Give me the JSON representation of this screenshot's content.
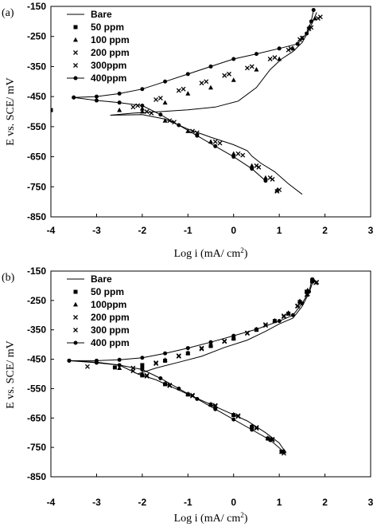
{
  "chart_data": [
    {
      "type": "line",
      "panel_label": "(a)",
      "xlabel": "Log i (mA/ cm",
      "xlabel_sup": "2",
      "xlabel_close": ")",
      "ylabel": "E vs. SCE/ mV",
      "xlim": [
        -4,
        3
      ],
      "ylim": [
        -850,
        -150
      ],
      "x_ticks": [
        "-4",
        "-3",
        "-2",
        "-1",
        "0",
        "1",
        "2",
        "3"
      ],
      "y_ticks": [
        "-150",
        "-250",
        "-350",
        "-450",
        "-550",
        "-650",
        "-750",
        "-850"
      ],
      "grid": false,
      "legend_position": "top-left",
      "series": [
        {
          "name": "Bare",
          "marker": "none",
          "points": [
            [
              -2.7,
              -512
            ],
            [
              -2.2,
              -505
            ],
            [
              -1.6,
              -500
            ],
            [
              -1.0,
              -494
            ],
            [
              -0.4,
              -485
            ],
            [
              0.1,
              -465
            ],
            [
              0.5,
              -420
            ],
            [
              0.8,
              -360
            ],
            [
              1.05,
              -325
            ],
            [
              1.3,
              -300
            ],
            [
              1.5,
              -270
            ],
            [
              1.65,
              -230
            ],
            [
              1.75,
              -195
            ],
            [
              1.82,
              -170
            ]
          ],
          "cathodic": [
            [
              -2.7,
              -512
            ],
            [
              -2.0,
              -510
            ],
            [
              -1.5,
              -525
            ],
            [
              -1.0,
              -558
            ],
            [
              -0.5,
              -585
            ],
            [
              0.0,
              -610
            ],
            [
              0.3,
              -630
            ],
            [
              0.4,
              -648
            ],
            [
              0.6,
              -672
            ],
            [
              0.9,
              -700
            ],
            [
              1.2,
              -740
            ],
            [
              1.5,
              -775
            ]
          ]
        },
        {
          "name": "50 ppm",
          "marker": "square",
          "points": [
            [
              -4.0,
              -495
            ]
          ]
        },
        {
          "name": "100 ppm",
          "marker": "triangle",
          "points": [
            [
              -2.5,
              -495
            ],
            [
              -2.0,
              -490
            ],
            [
              -1.5,
              -470
            ],
            [
              -1.0,
              -440
            ],
            [
              -0.5,
              -420
            ],
            [
              0.0,
              -395
            ],
            [
              0.5,
              -360
            ],
            [
              1.0,
              -325
            ],
            [
              1.3,
              -290
            ],
            [
              1.5,
              -255
            ],
            [
              1.65,
              -220
            ],
            [
              1.78,
              -190
            ]
          ],
          "cathodic": [
            [
              -2.0,
              -500
            ],
            [
              -1.5,
              -530
            ],
            [
              -1.0,
              -565
            ],
            [
              -0.5,
              -600
            ],
            [
              0.0,
              -640
            ],
            [
              0.4,
              -680
            ],
            [
              0.7,
              -720
            ],
            [
              0.95,
              -762
            ]
          ]
        },
        {
          "name": "200 ppm",
          "marker": "x",
          "points": [
            [
              -2.2,
              -485
            ],
            [
              -1.7,
              -460
            ],
            [
              -1.2,
              -430
            ],
            [
              -0.7,
              -405
            ],
            [
              -0.2,
              -380
            ],
            [
              0.3,
              -355
            ],
            [
              0.8,
              -325
            ],
            [
              1.2,
              -295
            ],
            [
              1.45,
              -260
            ],
            [
              1.65,
              -225
            ],
            [
              1.85,
              -190
            ]
          ],
          "cathodic": [
            [
              -1.9,
              -500
            ],
            [
              -1.4,
              -530
            ],
            [
              -0.9,
              -565
            ],
            [
              -0.4,
              -600
            ],
            [
              0.1,
              -640
            ],
            [
              0.5,
              -680
            ],
            [
              0.8,
              -720
            ],
            [
              1.0,
              -760
            ]
          ]
        },
        {
          "name": "300ppm",
          "marker": "x",
          "points": [
            [
              -2.1,
              -480
            ],
            [
              -1.6,
              -455
            ],
            [
              -1.1,
              -425
            ],
            [
              -0.6,
              -400
            ],
            [
              -0.1,
              -375
            ],
            [
              0.4,
              -350
            ],
            [
              0.9,
              -320
            ],
            [
              1.25,
              -290
            ],
            [
              1.5,
              -255
            ],
            [
              1.7,
              -220
            ],
            [
              1.9,
              -185
            ]
          ],
          "cathodic": [
            [
              -1.8,
              -505
            ],
            [
              -1.3,
              -535
            ],
            [
              -0.8,
              -570
            ],
            [
              -0.3,
              -605
            ],
            [
              0.2,
              -645
            ],
            [
              0.55,
              -685
            ],
            [
              0.85,
              -725
            ],
            [
              0.95,
              -765
            ]
          ]
        },
        {
          "name": "400ppm",
          "marker": "circle",
          "points": [
            [
              -3.5,
              -453
            ],
            [
              -3.0,
              -450
            ],
            [
              -2.5,
              -440
            ],
            [
              -2.0,
              -425
            ],
            [
              -1.5,
              -400
            ],
            [
              -1.0,
              -375
            ],
            [
              -0.5,
              -350
            ],
            [
              0.0,
              -325
            ],
            [
              0.5,
              -308
            ],
            [
              1.0,
              -290
            ],
            [
              1.4,
              -275
            ],
            [
              1.6,
              -240
            ],
            [
              1.7,
              -200
            ],
            [
              1.75,
              -162
            ]
          ],
          "cathodic": [
            [
              -3.5,
              -453
            ],
            [
              -3.0,
              -463
            ],
            [
              -2.5,
              -470
            ],
            [
              -2.0,
              -480
            ],
            [
              -1.6,
              -510
            ],
            [
              -1.2,
              -545
            ],
            [
              -0.8,
              -580
            ],
            [
              -0.4,
              -615
            ],
            [
              0.0,
              -650
            ],
            [
              0.4,
              -690
            ],
            [
              0.7,
              -730
            ]
          ]
        }
      ]
    },
    {
      "type": "line",
      "panel_label": "(b)",
      "xlabel": "Log i (mA/ cm",
      "xlabel_sup": "2",
      "xlabel_close": ")",
      "ylabel": "E vs. SCE/ mV",
      "xlim": [
        -4,
        3
      ],
      "ylim": [
        -850,
        -150
      ],
      "x_ticks": [
        "-4",
        "-3",
        "-2",
        "-1",
        "0",
        "1",
        "2",
        "3"
      ],
      "y_ticks": [
        "-150",
        "-250",
        "-350",
        "-450",
        "-550",
        "-650",
        "-750",
        "-850"
      ],
      "grid": false,
      "legend_position": "top-left",
      "series": [
        {
          "name": "Bare",
          "marker": "none",
          "points": [
            [
              -2.1,
              -500
            ],
            [
              -1.7,
              -480
            ],
            [
              -1.2,
              -460
            ],
            [
              -0.7,
              -440
            ],
            [
              -0.2,
              -410
            ],
            [
              0.3,
              -385
            ],
            [
              0.7,
              -355
            ],
            [
              1.0,
              -330
            ],
            [
              1.3,
              -310
            ],
            [
              1.5,
              -270
            ],
            [
              1.65,
              -225
            ],
            [
              1.75,
              -180
            ]
          ],
          "cathodic": [
            [
              -3.6,
              -455
            ],
            [
              -3.0,
              -460
            ],
            [
              -2.5,
              -470
            ],
            [
              -2.1,
              -500
            ],
            [
              -1.7,
              -520
            ],
            [
              -1.2,
              -555
            ],
            [
              -0.7,
              -590
            ],
            [
              -0.2,
              -625
            ],
            [
              0.3,
              -660
            ],
            [
              0.7,
              -700
            ],
            [
              1.0,
              -735
            ],
            [
              1.15,
              -770
            ]
          ]
        },
        {
          "name": "50 ppm",
          "marker": "square",
          "points": [
            [
              -2.6,
              -478
            ],
            [
              -2.0,
              -470
            ],
            [
              -1.5,
              -455
            ],
            [
              -1.0,
              -430
            ],
            [
              -0.5,
              -405
            ],
            [
              0.0,
              -380
            ],
            [
              0.5,
              -350
            ],
            [
              0.9,
              -320
            ],
            [
              1.2,
              -295
            ],
            [
              1.45,
              -255
            ],
            [
              1.6,
              -220
            ],
            [
              1.72,
              -185
            ]
          ],
          "cathodic": [
            [
              -2.0,
              -505
            ],
            [
              -1.5,
              -535
            ],
            [
              -1.0,
              -570
            ],
            [
              -0.5,
              -605
            ],
            [
              0.0,
              -640
            ],
            [
              0.4,
              -680
            ],
            [
              0.75,
              -720
            ],
            [
              1.05,
              -765
            ]
          ]
        },
        {
          "name": "100ppm",
          "marker": "triangle",
          "points": [
            [
              -2.5,
              -480
            ],
            [
              -2.0,
              -475
            ],
            [
              -1.5,
              -452
            ],
            [
              -1.0,
              -428
            ],
            [
              -0.5,
              -402
            ],
            [
              0.0,
              -378
            ],
            [
              0.5,
              -348
            ],
            [
              0.9,
              -318
            ],
            [
              1.2,
              -292
            ],
            [
              1.45,
              -252
            ],
            [
              1.62,
              -215
            ],
            [
              1.75,
              -180
            ]
          ],
          "cathodic": [
            [
              -2.0,
              -500
            ],
            [
              -1.5,
              -532
            ],
            [
              -1.0,
              -568
            ],
            [
              -0.5,
              -603
            ],
            [
              0.0,
              -638
            ],
            [
              0.4,
              -678
            ],
            [
              0.75,
              -718
            ],
            [
              1.1,
              -762
            ]
          ]
        },
        {
          "name": "200 ppm",
          "marker": "x",
          "points": [
            [
              -2.2,
              -490
            ],
            [
              -1.7,
              -465
            ],
            [
              -1.2,
              -440
            ],
            [
              -0.7,
              -415
            ],
            [
              -0.2,
              -390
            ],
            [
              0.3,
              -362
            ],
            [
              0.7,
              -335
            ],
            [
              1.1,
              -305
            ],
            [
              1.4,
              -270
            ],
            [
              1.6,
              -230
            ],
            [
              1.8,
              -190
            ]
          ],
          "cathodic": [
            [
              -1.9,
              -505
            ],
            [
              -1.4,
              -538
            ],
            [
              -0.9,
              -572
            ],
            [
              -0.4,
              -607
            ],
            [
              0.1,
              -642
            ],
            [
              0.5,
              -682
            ],
            [
              0.85,
              -722
            ],
            [
              1.1,
              -770
            ]
          ]
        },
        {
          "name": "300 ppm",
          "marker": "x",
          "points": [
            [
              -3.2,
              -475
            ],
            [
              -2.2,
              -480
            ],
            [
              -1.7,
              -462
            ],
            [
              -1.2,
              -438
            ],
            [
              -0.7,
              -412
            ],
            [
              -0.2,
              -388
            ],
            [
              0.3,
              -360
            ],
            [
              0.7,
              -332
            ],
            [
              1.1,
              -302
            ],
            [
              1.4,
              -268
            ],
            [
              1.62,
              -228
            ],
            [
              1.82,
              -188
            ]
          ],
          "cathodic": [
            [
              -1.9,
              -508
            ],
            [
              -1.4,
              -540
            ],
            [
              -0.9,
              -575
            ],
            [
              -0.4,
              -610
            ],
            [
              0.1,
              -645
            ],
            [
              0.5,
              -685
            ],
            [
              0.85,
              -725
            ],
            [
              1.05,
              -765
            ]
          ]
        },
        {
          "name": "400 ppm",
          "marker": "circle",
          "points": [
            [
              -3.6,
              -455
            ],
            [
              -3.0,
              -455
            ],
            [
              -2.5,
              -452
            ],
            [
              -2.0,
              -445
            ],
            [
              -1.5,
              -430
            ],
            [
              -1.0,
              -412
            ],
            [
              -0.5,
              -392
            ],
            [
              0.0,
              -370
            ],
            [
              0.5,
              -348
            ],
            [
              1.0,
              -320
            ],
            [
              1.3,
              -300
            ],
            [
              1.5,
              -260
            ],
            [
              1.65,
              -220
            ],
            [
              1.72,
              -178
            ]
          ],
          "cathodic": [
            [
              -3.6,
              -455
            ],
            [
              -3.0,
              -462
            ],
            [
              -2.5,
              -470
            ],
            [
              -2.0,
              -485
            ],
            [
              -1.6,
              -515
            ],
            [
              -1.2,
              -550
            ],
            [
              -0.8,
              -585
            ],
            [
              -0.4,
              -620
            ],
            [
              0.0,
              -655
            ],
            [
              0.4,
              -690
            ],
            [
              0.8,
              -725
            ],
            [
              1.1,
              -765
            ]
          ]
        }
      ]
    }
  ]
}
